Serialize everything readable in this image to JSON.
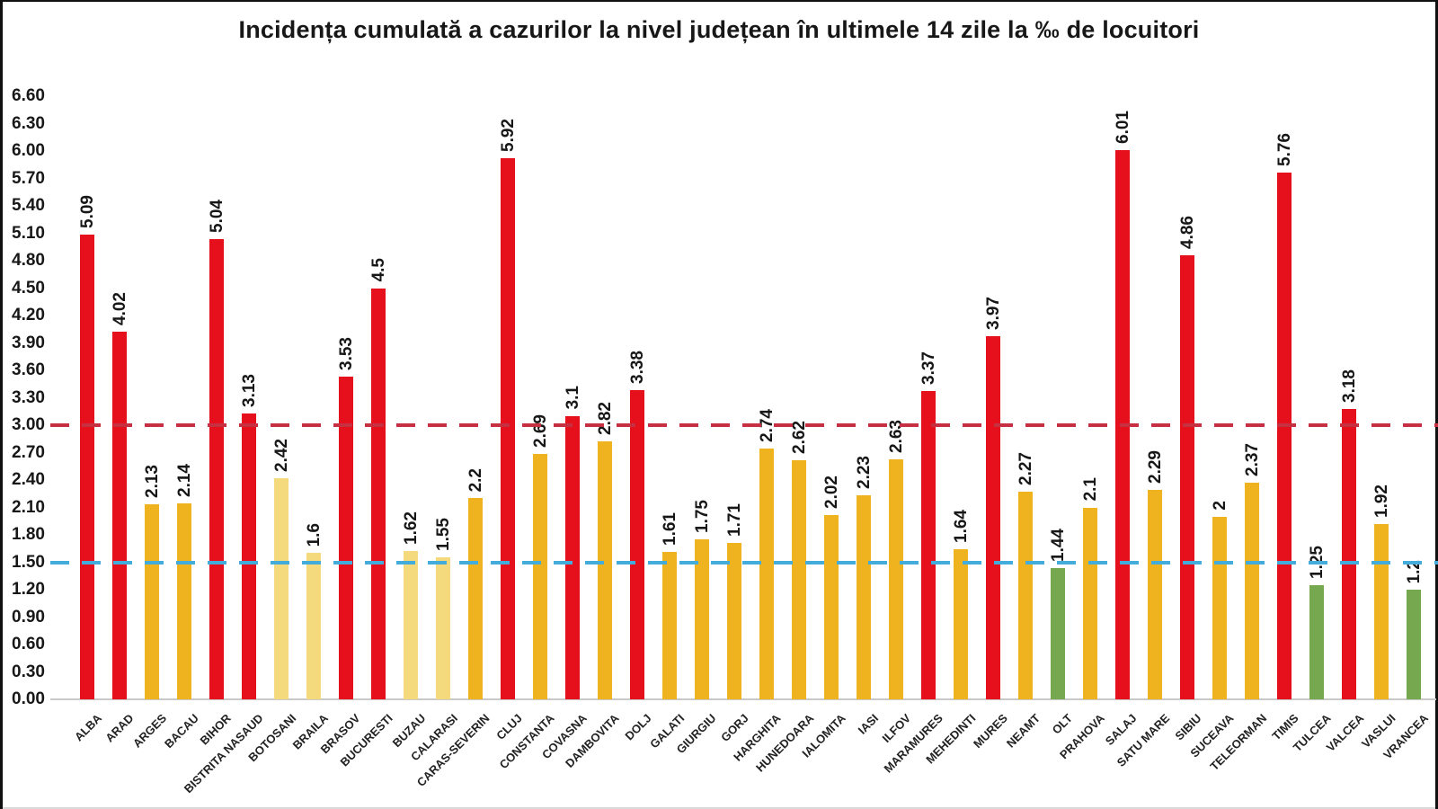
{
  "chart_data": {
    "type": "bar",
    "title": "Incidența cumulată a cazurilor la nivel județean în ultimele 14 zile la ‰ de locuitori",
    "xlabel": "",
    "ylabel": "",
    "ylim": [
      0,
      6.6
    ],
    "y_tick_step": 0.3,
    "y_ticks": [
      "6.60",
      "6.30",
      "6.00",
      "5.70",
      "5.40",
      "5.10",
      "4.80",
      "4.50",
      "4.20",
      "3.90",
      "3.60",
      "3.30",
      "3.00",
      "2.70",
      "2.40",
      "2.10",
      "1.80",
      "1.50",
      "1.20",
      "0.90",
      "0.60",
      "0.30",
      "0.00"
    ],
    "grid": false,
    "legend": false,
    "categories": [
      "ALBA",
      "ARAD",
      "ARGES",
      "BACAU",
      "BIHOR",
      "BISTRITA NASAUD",
      "BOTOSANI",
      "BRAILA",
      "BRASOV",
      "BUCURESTI",
      "BUZAU",
      "CALARASI",
      "CARAS-SEVERIN",
      "CLUJ",
      "CONSTANTA",
      "COVASNA",
      "DAMBOVITA",
      "DOLJ",
      "GALATI",
      "GIURGIU",
      "GORJ",
      "HARGHITA",
      "HUNEDOARA",
      "IALOMITA",
      "IASI",
      "ILFOV",
      "MARAMURES",
      "MEHEDINTI",
      "MURES",
      "NEAMT",
      "OLT",
      "PRAHOVA",
      "SALAJ",
      "SATU MARE",
      "SIBIU",
      "SUCEAVA",
      "TELEORMAN",
      "TIMIS",
      "TULCEA",
      "VALCEA",
      "VASLUI",
      "VRANCEA"
    ],
    "values": [
      5.09,
      4.02,
      2.13,
      2.14,
      5.04,
      3.13,
      2.42,
      1.6,
      3.53,
      4.5,
      1.62,
      1.55,
      2.2,
      5.92,
      2.69,
      3.1,
      2.82,
      3.38,
      1.61,
      1.75,
      1.71,
      2.74,
      2.62,
      2.02,
      2.23,
      2.63,
      3.37,
      1.64,
      3.97,
      2.27,
      1.44,
      2.1,
      6.01,
      2.29,
      4.86,
      2,
      2.37,
      5.76,
      1.25,
      3.18,
      1.92,
      1.2
    ],
    "value_labels": [
      "5.09",
      "4.02",
      "2.13",
      "2.14",
      "5.04",
      "3.13",
      "2.42",
      "1.6",
      "3.53",
      "4.5",
      "1.62",
      "1.55",
      "2.2",
      "5.92",
      "2.69",
      "3.1",
      "2.82",
      "3.38",
      "1.61",
      "1.75",
      "1.71",
      "2.74",
      "2.62",
      "2.02",
      "2.23",
      "2.63",
      "3.37",
      "1.64",
      "3.97",
      "2.27",
      "1.44",
      "2.1",
      "6.01",
      "2.29",
      "4.86",
      "2",
      "2.37",
      "5.76",
      "1.25",
      "3.18",
      "1.92",
      "1.2"
    ],
    "bar_colors": [
      "red",
      "red",
      "gold",
      "gold",
      "red",
      "red",
      "pale",
      "pale",
      "red",
      "red",
      "pale",
      "pale",
      "gold",
      "red",
      "gold",
      "red",
      "gold",
      "red",
      "gold",
      "gold",
      "gold",
      "gold",
      "gold",
      "gold",
      "gold",
      "gold",
      "red",
      "gold",
      "red",
      "gold",
      "green",
      "gold",
      "red",
      "gold",
      "red",
      "gold",
      "gold",
      "red",
      "green",
      "red",
      "gold",
      "green"
    ],
    "palette": {
      "red": "#E5101B",
      "gold": "#EFB320",
      "pale": "#F4DA7C",
      "green": "#76A94F"
    },
    "reference_lines": [
      {
        "name": "upper-threshold",
        "value": 3.0,
        "color": "#C63040",
        "style": "dashed"
      },
      {
        "name": "lower-threshold",
        "value": 1.5,
        "color": "#44ACDB",
        "style": "dashed"
      }
    ],
    "text_color": "#171717"
  }
}
